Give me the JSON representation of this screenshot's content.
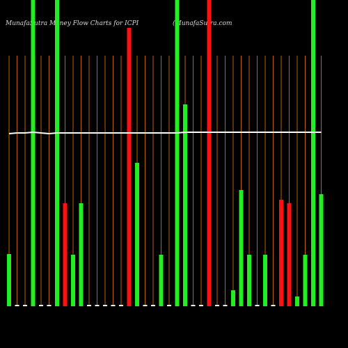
{
  "chart_data": {
    "type": "bar",
    "title": "MunafaSutra  Money Flow  Charts for ICPI",
    "subtitle": "(MunafaSutra.com",
    "categories": [
      null,
      null,
      null,
      null,
      null,
      null,
      null,
      null,
      null,
      null,
      null,
      null,
      null,
      null,
      null,
      null,
      null,
      null,
      null,
      null,
      null,
      null,
      null,
      null,
      null,
      null,
      null,
      null,
      null,
      null,
      null,
      null,
      null,
      null,
      null,
      null,
      null,
      null,
      null,
      null
    ],
    "values": [
      75,
      2,
      2,
      440,
      2,
      2,
      440,
      148,
      74,
      148,
      2,
      2,
      2,
      2,
      2,
      400,
      206,
      2,
      2,
      74,
      2,
      440,
      290,
      2,
      2,
      440,
      2,
      2,
      23,
      167,
      74,
      2,
      74,
      2,
      153,
      148,
      14,
      74,
      440,
      161
    ],
    "colors": [
      "#22ee22",
      "#ffffff",
      "#ffffff",
      "#22ee22",
      "#ffffff",
      "#ffffff",
      "#22ee22",
      "#ff1111",
      "#22ee22",
      "#22ee22",
      "#ffffff",
      "#ffffff",
      "#ffffff",
      "#ffffff",
      "#ffffff",
      "#ff1111",
      "#22ee22",
      "#ffffff",
      "#ffffff",
      "#22ee22",
      "#ffffff",
      "#22ee22",
      "#22ee22",
      "#ffffff",
      "#ffffff",
      "#ff1111",
      "#ffffff",
      "#ffffff",
      "#22ee22",
      "#22ee22",
      "#22ee22",
      "#ffffff",
      "#22ee22",
      "#ffffff",
      "#ff1111",
      "#ff1111",
      "#22ee22",
      "#22ee22",
      "#22ee22",
      "#22ee22"
    ],
    "line": {
      "color": "#ffffff",
      "values": [
        248,
        249,
        249,
        250,
        249,
        248,
        249,
        249,
        249,
        249,
        249,
        249,
        249,
        249,
        249,
        249,
        249,
        249,
        249,
        249,
        249,
        249,
        250,
        250,
        250,
        250,
        250,
        250,
        250,
        250,
        250,
        250,
        250,
        250,
        250,
        250,
        250,
        250,
        250,
        250
      ]
    },
    "grid_color": "#b8620a",
    "ylim": [
      0,
      440
    ]
  }
}
